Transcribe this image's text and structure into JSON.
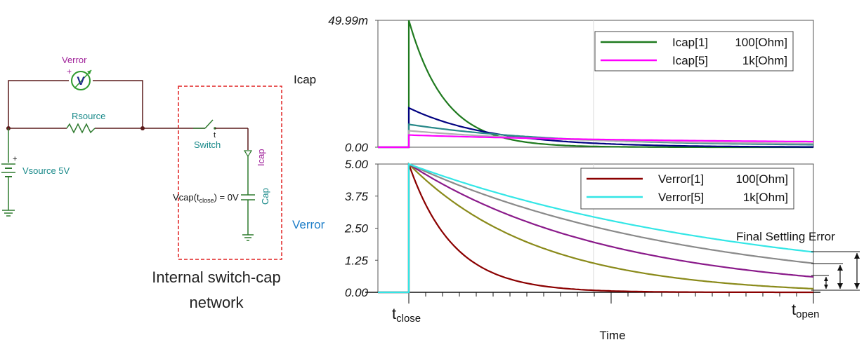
{
  "circuit": {
    "verror_label": "Verror",
    "meter_symbol": "V",
    "rsource_label": "Rsource",
    "switch_label": "Switch",
    "switch_t": "t",
    "icap_label": "Icap",
    "cap_label": "Cap",
    "vsource_label": "Vsource 5V",
    "vcap_prefix": "Vcap(t",
    "vcap_sub": "close",
    "vcap_suffix": ") = 0V",
    "plus_sign": "+",
    "box_caption_line1": "Internal switch-cap",
    "box_caption_line2": "network",
    "colors": {
      "wire": "#5a1a1a",
      "green": "#2e9a2e",
      "teal": "#1a8a8a",
      "purple": "#a0229a",
      "meter": "#1e2a8a",
      "box": "#e02020"
    }
  },
  "labels": {
    "icap_side": "Icap",
    "verror_side": "Verror",
    "t_close_main": "t",
    "t_close_sub": "close",
    "t_open_main": "t",
    "t_open_sub": "open",
    "time_axis": "Time",
    "final_settling": "Final Settling Error"
  },
  "chart_data": [
    {
      "type": "line",
      "name": "icap-panel",
      "ylim": [
        0,
        0.04999
      ],
      "xlim": [
        0,
        1
      ],
      "yticks": [
        "49.99m",
        "0.00"
      ],
      "grid": true,
      "legend_position": "top-right",
      "legend": [
        {
          "label": "Icap[1]",
          "value": "100[Ohm]",
          "color": "#1f7a1f"
        },
        {
          "label": "Icap[5]",
          "value": "1k[Ohm]",
          "color": "#ff00ff"
        }
      ],
      "series": [
        {
          "color": "#1f7a1f",
          "pre": 0,
          "peak": 0.04999,
          "tau": 0.09,
          "floor": 0.0
        },
        {
          "color": "#000080",
          "pre": 0,
          "peak": 0.0155,
          "tau": 0.2,
          "floor": 0.0
        },
        {
          "color": "#2a8a8a",
          "pre": 0,
          "peak": 0.009,
          "tau": 0.35,
          "floor": 0.0005
        },
        {
          "color": "#b0b0b0",
          "pre": 0,
          "peak": 0.0065,
          "tau": 0.4,
          "floor": 0.001
        },
        {
          "color": "#ff00ff",
          "pre": 0,
          "peak": 0.0048,
          "tau": 0.6,
          "floor": 0.0016
        }
      ]
    },
    {
      "type": "line",
      "name": "verror-panel",
      "ylim": [
        0,
        5.0
      ],
      "xlim": [
        0,
        1
      ],
      "yticks": [
        "5.00",
        "3.75",
        "2.50",
        "1.25",
        "0.00"
      ],
      "grid": true,
      "legend_position": "top-right",
      "legend": [
        {
          "label": "Verror[1]",
          "value": "100[Ohm]",
          "color": "#8b0000"
        },
        {
          "label": "Verror[5]",
          "value": "1k[Ohm]",
          "color": "#33e6e6"
        }
      ],
      "series": [
        {
          "color": "#8b0000",
          "peak": 5.0,
          "tau": 0.11,
          "end": 0.0
        },
        {
          "color": "#8a8a1a",
          "peak": 5.0,
          "tau": 0.32,
          "end": 0.14
        },
        {
          "color": "#8a1a8a",
          "peak": 5.0,
          "tau": 0.5,
          "end": 0.6
        },
        {
          "color": "#8a8a8a",
          "peak": 5.0,
          "tau": 0.7,
          "end": 1.13
        },
        {
          "color": "#33e6e6",
          "peak": 5.0,
          "tau": 0.85,
          "end": 1.57
        }
      ]
    }
  ]
}
